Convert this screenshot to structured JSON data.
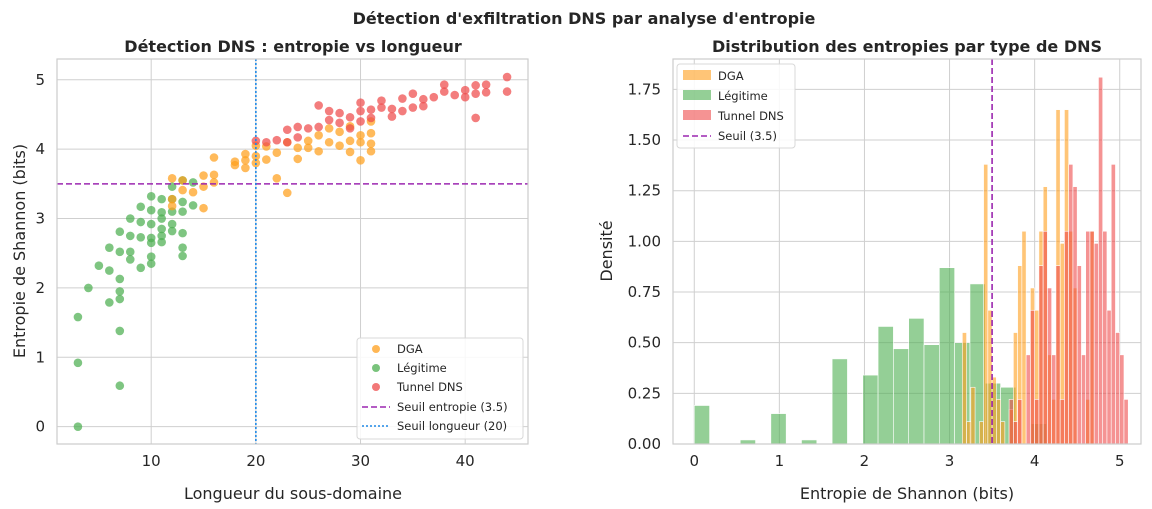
{
  "figure": {
    "suptitle": "Détection d'exfiltration DNS par analyse d'entropie"
  },
  "colors": {
    "dga": "#ff9f1c",
    "legit": "#4caf50",
    "tunnel": "#ee4b4b",
    "threshold_entropy": "#9c27b0",
    "threshold_length": "#1e88e5"
  },
  "chart_data": [
    {
      "type": "scatter",
      "title": "Détection DNS : entropie vs longueur",
      "xlabel": "Longueur du sous-domaine",
      "ylabel": "Entropie de Shannon (bits)",
      "xlim": [
        1.0,
        46.0
      ],
      "ylim": [
        -0.25,
        5.3
      ],
      "xticks": [
        "10",
        "20",
        "30",
        "40"
      ],
      "xtick_values": [
        10,
        20,
        30,
        40
      ],
      "yticks": [
        "0",
        "1",
        "2",
        "3",
        "4",
        "5"
      ],
      "ytick_values": [
        0,
        1,
        2,
        3,
        4,
        5
      ],
      "thresholds": {
        "entropy": 3.5,
        "length": 20
      },
      "legend_position": "lower-right",
      "legend": [
        "DGA",
        "Légitime",
        "Tunnel DNS",
        "Seuil entropie (3.5)",
        "Seuil longueur (20)"
      ],
      "series": [
        {
          "name": "Légitime",
          "points": [
            [
              3,
              0
            ],
            [
              3,
              0.92
            ],
            [
              3,
              1.58
            ],
            [
              4,
              2.0
            ],
            [
              5,
              2.32
            ],
            [
              6,
              1.79
            ],
            [
              6,
              2.25
            ],
            [
              6,
              2.58
            ],
            [
              7,
              0.59
            ],
            [
              7,
              1.38
            ],
            [
              7,
              1.84
            ],
            [
              7,
              1.95
            ],
            [
              7,
              2.13
            ],
            [
              7,
              2.52
            ],
            [
              7,
              2.81
            ],
            [
              8,
              2.41
            ],
            [
              8,
              2.52
            ],
            [
              8,
              2.75
            ],
            [
              8,
              3.0
            ],
            [
              9,
              2.29
            ],
            [
              9,
              2.73
            ],
            [
              9,
              2.95
            ],
            [
              9,
              3.17
            ],
            [
              10,
              2.35
            ],
            [
              10,
              2.45
            ],
            [
              10,
              2.65
            ],
            [
              10,
              2.72
            ],
            [
              10,
              2.92
            ],
            [
              10,
              3.12
            ],
            [
              10,
              3.32
            ],
            [
              11,
              2.66
            ],
            [
              11,
              2.75
            ],
            [
              11,
              2.85
            ],
            [
              11,
              3.0
            ],
            [
              11,
              3.09
            ],
            [
              11,
              3.28
            ],
            [
              12,
              2.82
            ],
            [
              12,
              2.92
            ],
            [
              12,
              3.1
            ],
            [
              12,
              3.28
            ],
            [
              12,
              3.46
            ],
            [
              13,
              2.46
            ],
            [
              13,
              2.58
            ],
            [
              13,
              2.79
            ],
            [
              13,
              3.1
            ],
            [
              13,
              3.24
            ],
            [
              13,
              3.55
            ],
            [
              14,
              3.19
            ],
            [
              14,
              3.52
            ]
          ]
        },
        {
          "name": "DGA",
          "points": [
            [
              12,
              3.18
            ],
            [
              12,
              3.28
            ],
            [
              12,
              3.58
            ],
            [
              13,
              3.41
            ],
            [
              13,
              3.55
            ],
            [
              14,
              3.38
            ],
            [
              15,
              3.15
            ],
            [
              15,
              3.46
            ],
            [
              15,
              3.62
            ],
            [
              16,
              3.52
            ],
            [
              16,
              3.63
            ],
            [
              16,
              3.88
            ],
            [
              18,
              3.77
            ],
            [
              18,
              3.82
            ],
            [
              19,
              3.73
            ],
            [
              19,
              3.84
            ],
            [
              19,
              3.93
            ],
            [
              20,
              3.8
            ],
            [
              20,
              3.9
            ],
            [
              20,
              4.05
            ],
            [
              21,
              3.85
            ],
            [
              21,
              4.04
            ],
            [
              22,
              3.58
            ],
            [
              22,
              3.95
            ],
            [
              23,
              3.37
            ],
            [
              23,
              4.1
            ],
            [
              24,
              3.86
            ],
            [
              24,
              4.02
            ],
            [
              25,
              4.02
            ],
            [
              25,
              4.12
            ],
            [
              26,
              3.97
            ],
            [
              26,
              4.2
            ],
            [
              27,
              4.1
            ],
            [
              27,
              4.3
            ],
            [
              28,
              4.05
            ],
            [
              28,
              4.25
            ],
            [
              29,
              3.96
            ],
            [
              29,
              4.12
            ],
            [
              29,
              4.33
            ],
            [
              30,
              3.84
            ],
            [
              30,
              4.1
            ],
            [
              30,
              4.2
            ],
            [
              31,
              3.97
            ],
            [
              31,
              4.08
            ],
            [
              31,
              4.23
            ],
            [
              31,
              4.4
            ]
          ]
        },
        {
          "name": "Tunnel DNS",
          "points": [
            [
              20,
              4.12
            ],
            [
              21,
              4.1
            ],
            [
              22,
              4.13
            ],
            [
              23,
              4.1
            ],
            [
              23,
              4.28
            ],
            [
              24,
              4.17
            ],
            [
              24,
              4.32
            ],
            [
              25,
              4.3
            ],
            [
              26,
              4.32
            ],
            [
              26,
              4.63
            ],
            [
              27,
              4.42
            ],
            [
              27,
              4.55
            ],
            [
              28,
              4.38
            ],
            [
              28,
              4.52
            ],
            [
              29,
              4.3
            ],
            [
              29,
              4.46
            ],
            [
              30,
              4.4
            ],
            [
              30,
              4.55
            ],
            [
              30,
              4.67
            ],
            [
              31,
              4.45
            ],
            [
              31,
              4.57
            ],
            [
              32,
              4.6
            ],
            [
              32,
              4.7
            ],
            [
              33,
              4.47
            ],
            [
              33,
              4.58
            ],
            [
              34,
              4.55
            ],
            [
              34,
              4.73
            ],
            [
              35,
              4.6
            ],
            [
              35,
              4.8
            ],
            [
              36,
              4.62
            ],
            [
              36,
              4.72
            ],
            [
              37,
              4.75
            ],
            [
              38,
              4.83
            ],
            [
              38,
              4.93
            ],
            [
              39,
              4.78
            ],
            [
              40,
              4.75
            ],
            [
              40,
              4.85
            ],
            [
              41,
              4.45
            ],
            [
              41,
              4.8
            ],
            [
              41,
              4.92
            ],
            [
              42,
              4.82
            ],
            [
              42,
              4.93
            ],
            [
              44,
              4.83
            ],
            [
              44,
              5.04
            ]
          ]
        }
      ]
    },
    {
      "type": "histogram",
      "title": "Distribution des entropies par type de DNS",
      "xlabel": "Entropie de Shannon (bits)",
      "ylabel": "Densité",
      "xlim": [
        -0.25,
        5.25
      ],
      "ylim": [
        0,
        1.9
      ],
      "xticks": [
        "0",
        "1",
        "2",
        "3",
        "4",
        "5"
      ],
      "xtick_values": [
        0,
        1,
        2,
        3,
        4,
        5
      ],
      "yticks": [
        "0.00",
        "0.25",
        "0.50",
        "0.75",
        "1.00",
        "1.25",
        "1.50",
        "1.75"
      ],
      "ytick_values": [
        0,
        0.25,
        0.5,
        0.75,
        1.0,
        1.25,
        1.5,
        1.75
      ],
      "threshold": 3.5,
      "legend_position": "upper-left",
      "legend": [
        "DGA",
        "Légitime",
        "Tunnel DNS",
        "Seuil (3.5)"
      ],
      "series": [
        {
          "name": "Légitime",
          "bin_start": 0.0,
          "bin_width": 0.18,
          "values": [
            0.19,
            0,
            0,
            0.02,
            0,
            0.15,
            0,
            0.02,
            0,
            0.42,
            0,
            0.34,
            0.58,
            0.47,
            0.62,
            0.49,
            0.87,
            0.5,
            0.79,
            0.3,
            0.28,
            0,
            0.1
          ]
        },
        {
          "name": "DGA",
          "bin_start": 3.15,
          "bin_width": 0.05,
          "values": [
            0.55,
            0.11,
            0.28,
            0,
            0.11,
            1.38,
            0.66,
            0.33,
            0.22,
            0.11,
            0,
            0.17,
            0.55,
            0.88,
            1.05,
            0,
            0.77,
            0.66,
            1.05,
            1.27,
            0.44,
            0.22,
            1.65,
            0.99,
            1.65,
            1.05,
            0.77,
            0,
            0,
            0.22,
            1.05
          ]
        },
        {
          "name": "Tunnel DNS",
          "bin_start": 3.7,
          "bin_width": 0.05,
          "values": [
            0.22,
            0.11,
            0.22,
            0,
            0.44,
            0.66,
            0.22,
            0.88,
            1.05,
            0.77,
            0.44,
            0.88,
            0.22,
            1.05,
            1.38,
            1.27,
            0.88,
            0.44,
            1.05,
            1.05,
            0.99,
            1.81,
            1.05,
            0.66,
            1.38,
            0.55,
            0.44,
            0.22
          ]
        }
      ]
    }
  ]
}
